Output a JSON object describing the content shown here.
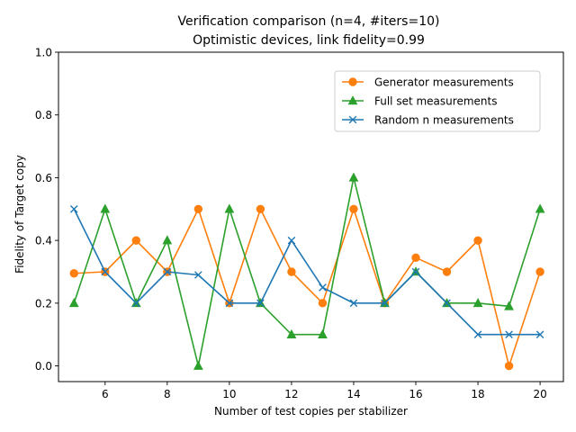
{
  "chart_data": {
    "type": "line",
    "title_lines": [
      "Verification comparison (n=4, #iters=10)",
      "Optimistic devices, link fidelity=0.99"
    ],
    "xlabel": "Number of test copies per stabilizer",
    "ylabel": "Fidelity of Target copy",
    "xlim": [
      4.5,
      20.75
    ],
    "ylim": [
      -0.05,
      1.0
    ],
    "xticks": [
      6,
      8,
      10,
      12,
      14,
      16,
      18,
      20
    ],
    "yticks": [
      0.0,
      0.2,
      0.4,
      0.6,
      0.8,
      1.0
    ],
    "ytick_labels": [
      "0.0",
      "0.2",
      "0.4",
      "0.6",
      "0.8",
      "1.0"
    ],
    "grid": false,
    "legend_position": "upper right",
    "x": [
      5,
      6,
      7,
      8,
      9,
      10,
      11,
      12,
      13,
      14,
      15,
      16,
      17,
      18,
      19,
      20
    ],
    "series": [
      {
        "name": "Generator measurements",
        "color": "#ff7f0e",
        "marker": "circle",
        "values": [
          0.295,
          0.3,
          0.4,
          0.3,
          0.5,
          0.2,
          0.5,
          0.3,
          0.2,
          0.5,
          0.2,
          0.345,
          0.3,
          0.4,
          0.0,
          0.3
        ]
      },
      {
        "name": "Full set measurements",
        "color": "#2ca02c",
        "marker": "triangle",
        "values": [
          0.2,
          0.5,
          0.2,
          0.4,
          0.0,
          0.5,
          0.2,
          0.1,
          0.1,
          0.6,
          0.2,
          0.3,
          0.2,
          0.2,
          0.19,
          0.5
        ]
      },
      {
        "name": "Random n measurements",
        "color": "#1f77b4",
        "marker": "x",
        "values": [
          0.5,
          0.3,
          0.2,
          0.3,
          0.29,
          0.2,
          0.2,
          0.4,
          0.25,
          0.2,
          0.2,
          0.3,
          0.2,
          0.1,
          0.1,
          0.1
        ]
      }
    ]
  }
}
